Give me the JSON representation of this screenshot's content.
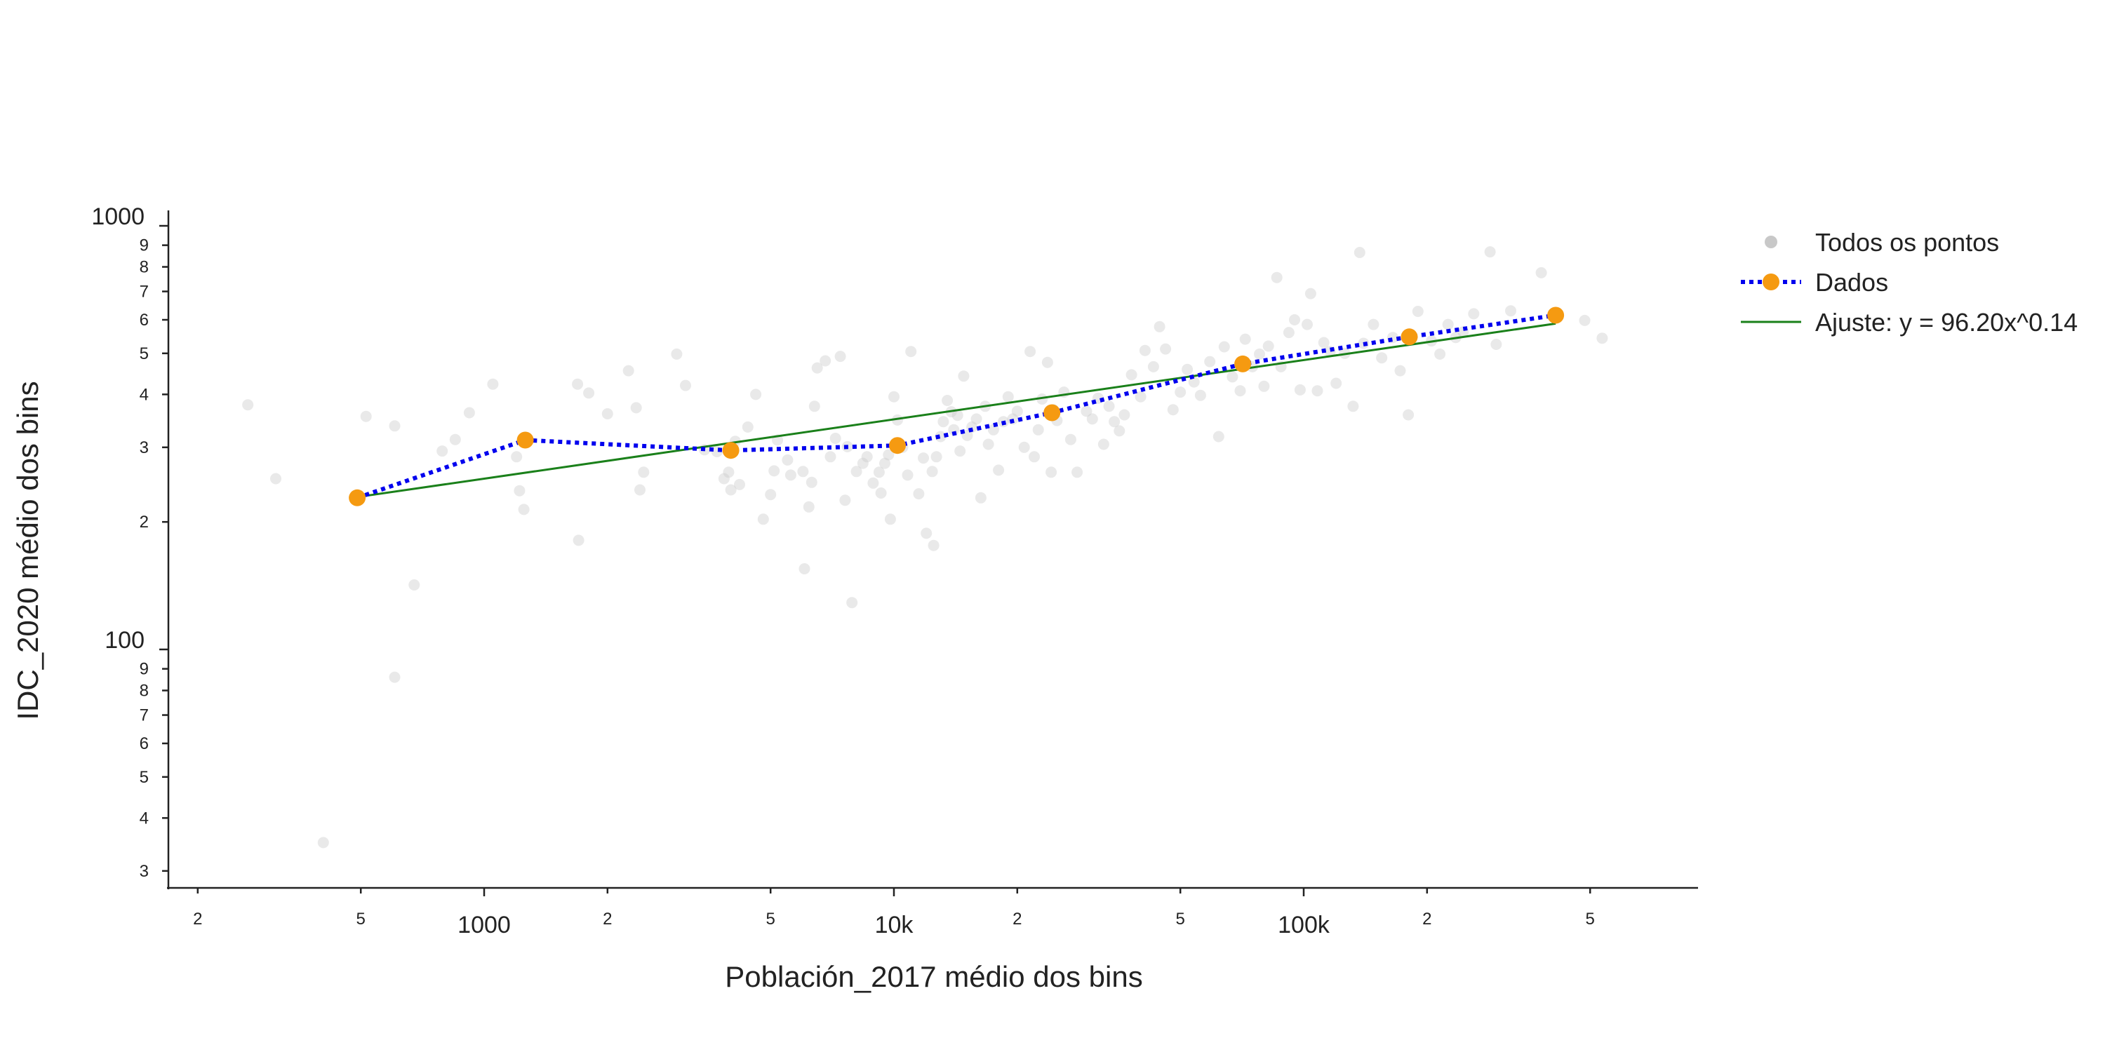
{
  "chart_data": {
    "type": "scatter",
    "xlabel": "Población_2017 médio dos bins",
    "ylabel": "IDC_2020 médio dos bins",
    "x_scale": "log",
    "y_scale": "log",
    "xlim": [
      150,
      800000
    ],
    "ylim": [
      27,
      1150
    ],
    "grid": false,
    "legend_position": "top-right, outside plot",
    "x_ticks": {
      "major": [
        {
          "value": 1000,
          "label": "1000"
        },
        {
          "value": 10000,
          "label": "10k"
        },
        {
          "value": 100000,
          "label": "100k"
        }
      ],
      "minor": [
        {
          "value": 200,
          "label": "2"
        },
        {
          "value": 500,
          "label": "5"
        },
        {
          "value": 2000,
          "label": "2"
        },
        {
          "value": 5000,
          "label": "5"
        },
        {
          "value": 20000,
          "label": "2"
        },
        {
          "value": 50000,
          "label": "5"
        },
        {
          "value": 200000,
          "label": "2"
        },
        {
          "value": 500000,
          "label": "5"
        }
      ]
    },
    "y_ticks": {
      "major": [
        {
          "value": 100,
          "label": "100"
        },
        {
          "value": 1000,
          "label": "1000"
        }
      ],
      "minor": [
        {
          "value": 30,
          "label": "3"
        },
        {
          "value": 40,
          "label": "4"
        },
        {
          "value": 50,
          "label": "5"
        },
        {
          "value": 60,
          "label": "6"
        },
        {
          "value": 70,
          "label": "7"
        },
        {
          "value": 80,
          "label": "8"
        },
        {
          "value": 90,
          "label": "9"
        },
        {
          "value": 200,
          "label": "2"
        },
        {
          "value": 300,
          "label": "3"
        },
        {
          "value": 400,
          "label": "4"
        },
        {
          "value": 500,
          "label": "5"
        },
        {
          "value": 600,
          "label": "6"
        },
        {
          "value": 700,
          "label": "7"
        },
        {
          "value": 800,
          "label": "8"
        },
        {
          "value": 900,
          "label": "9"
        }
      ]
    },
    "series": [
      {
        "name": "Todos os pontos",
        "kind": "scatter",
        "color": "#c8c8c8",
        "opacity": 0.4,
        "points": [
          [
            265,
            378
          ],
          [
            310,
            253
          ],
          [
            405,
            35
          ],
          [
            515,
            355
          ],
          [
            605,
            337
          ],
          [
            605,
            86
          ],
          [
            675,
            142
          ],
          [
            790,
            294
          ],
          [
            850,
            313
          ],
          [
            920,
            362
          ],
          [
            1050,
            423
          ],
          [
            1200,
            285
          ],
          [
            1220,
            237
          ],
          [
            1250,
            214
          ],
          [
            1690,
            423
          ],
          [
            1700,
            181
          ],
          [
            1800,
            403
          ],
          [
            2000,
            360
          ],
          [
            2250,
            455
          ],
          [
            2350,
            372
          ],
          [
            2400,
            238
          ],
          [
            2450,
            262
          ],
          [
            2950,
            498
          ],
          [
            3100,
            420
          ],
          [
            3450,
            296
          ],
          [
            3700,
            293
          ],
          [
            3850,
            253
          ],
          [
            3950,
            262
          ],
          [
            4000,
            238
          ],
          [
            4100,
            310
          ],
          [
            4200,
            245
          ],
          [
            4400,
            335
          ],
          [
            4600,
            400
          ],
          [
            4800,
            203
          ],
          [
            5000,
            232
          ],
          [
            5100,
            264
          ],
          [
            5200,
            312
          ],
          [
            5500,
            280
          ],
          [
            5600,
            258
          ],
          [
            6000,
            263
          ],
          [
            6050,
            155
          ],
          [
            6200,
            217
          ],
          [
            6300,
            248
          ],
          [
            6400,
            375
          ],
          [
            6500,
            462
          ],
          [
            6800,
            480
          ],
          [
            7000,
            285
          ],
          [
            7200,
            315
          ],
          [
            7400,
            492
          ],
          [
            7600,
            225
          ],
          [
            7700,
            301
          ],
          [
            7900,
            129
          ],
          [
            8100,
            263
          ],
          [
            8400,
            275
          ],
          [
            8600,
            285
          ],
          [
            8900,
            247
          ],
          [
            9200,
            262
          ],
          [
            9300,
            234
          ],
          [
            9500,
            275
          ],
          [
            9700,
            288
          ],
          [
            9800,
            203
          ],
          [
            10000,
            395
          ],
          [
            10200,
            348
          ],
          [
            10500,
            300
          ],
          [
            10800,
            258
          ],
          [
            11000,
            505
          ],
          [
            11500,
            233
          ],
          [
            11800,
            283
          ],
          [
            12000,
            188
          ],
          [
            12400,
            263
          ],
          [
            12500,
            176
          ],
          [
            12700,
            285
          ],
          [
            13000,
            318
          ],
          [
            13200,
            345
          ],
          [
            13500,
            387
          ],
          [
            13800,
            364
          ],
          [
            14000,
            330
          ],
          [
            14300,
            357
          ],
          [
            14500,
            294
          ],
          [
            14800,
            442
          ],
          [
            15100,
            320
          ],
          [
            15500,
            335
          ],
          [
            15900,
            350
          ],
          [
            16300,
            228
          ],
          [
            16700,
            375
          ],
          [
            17000,
            305
          ],
          [
            17500,
            330
          ],
          [
            18000,
            265
          ],
          [
            18500,
            345
          ],
          [
            19000,
            395
          ],
          [
            19500,
            350
          ],
          [
            20000,
            365
          ],
          [
            20800,
            300
          ],
          [
            21500,
            505
          ],
          [
            22000,
            285
          ],
          [
            22500,
            330
          ],
          [
            23000,
            390
          ],
          [
            23700,
            476
          ],
          [
            24200,
            262
          ],
          [
            24500,
            368
          ],
          [
            25000,
            347
          ],
          [
            26000,
            405
          ],
          [
            27000,
            313
          ],
          [
            28000,
            262
          ],
          [
            29500,
            365
          ],
          [
            30500,
            350
          ],
          [
            31500,
            392
          ],
          [
            32500,
            305
          ],
          [
            33500,
            375
          ],
          [
            34500,
            345
          ],
          [
            35500,
            328
          ],
          [
            36500,
            358
          ],
          [
            38000,
            445
          ],
          [
            40000,
            395
          ],
          [
            41000,
            508
          ],
          [
            43000,
            465
          ],
          [
            44500,
            578
          ],
          [
            46000,
            512
          ],
          [
            48000,
            368
          ],
          [
            50000,
            405
          ],
          [
            52000,
            458
          ],
          [
            54000,
            428
          ],
          [
            56000,
            398
          ],
          [
            59000,
            478
          ],
          [
            62000,
            318
          ],
          [
            64000,
            518
          ],
          [
            67000,
            440
          ],
          [
            70000,
            408
          ],
          [
            72000,
            540
          ],
          [
            75000,
            465
          ],
          [
            78000,
            498
          ],
          [
            80000,
            418
          ],
          [
            82000,
            520
          ],
          [
            86000,
            755
          ],
          [
            88000,
            465
          ],
          [
            92000,
            560
          ],
          [
            95000,
            600
          ],
          [
            98000,
            410
          ],
          [
            102000,
            585
          ],
          [
            104000,
            692
          ],
          [
            108000,
            408
          ],
          [
            112000,
            530
          ],
          [
            116000,
            505
          ],
          [
            120000,
            425
          ],
          [
            126000,
            500
          ],
          [
            132000,
            375
          ],
          [
            137000,
            865
          ],
          [
            140000,
            528
          ],
          [
            148000,
            585
          ],
          [
            155000,
            488
          ],
          [
            165000,
            545
          ],
          [
            172000,
            455
          ],
          [
            180000,
            358
          ],
          [
            190000,
            628
          ],
          [
            205000,
            535
          ],
          [
            215000,
            498
          ],
          [
            225000,
            585
          ],
          [
            235000,
            545
          ],
          [
            245000,
            562
          ],
          [
            260000,
            620
          ],
          [
            285000,
            868
          ],
          [
            295000,
            525
          ],
          [
            320000,
            630
          ],
          [
            380000,
            775
          ],
          [
            485000,
            598
          ],
          [
            535000,
            543
          ]
        ]
      },
      {
        "name": "Dados",
        "kind": "line+markers",
        "color": "#0000ee",
        "marker_color": "#f59a11",
        "line_style": "dotted",
        "points": [
          [
            490,
            228
          ],
          [
            1260,
            312
          ],
          [
            4000,
            295
          ],
          [
            10200,
            303
          ],
          [
            24300,
            362
          ],
          [
            71000,
            472
          ],
          [
            181000,
            547
          ],
          [
            412000,
            615
          ]
        ]
      },
      {
        "name": "Ajuste: y = 96.20x^0.14",
        "kind": "line",
        "color": "#1a801a",
        "fit": {
          "a": 96.2,
          "b": 0.14
        },
        "x_range": [
          490,
          412000
        ]
      }
    ]
  }
}
